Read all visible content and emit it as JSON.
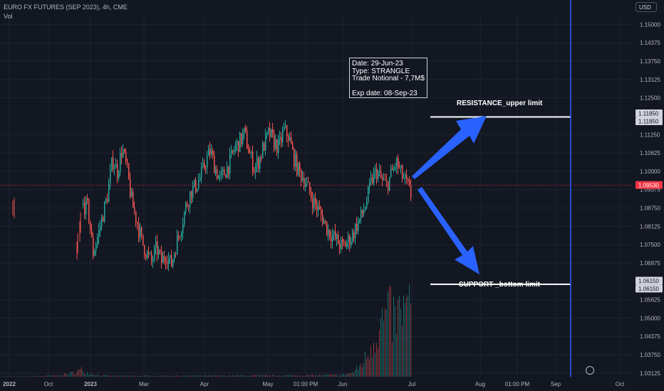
{
  "header": {
    "symbol_title": "EURO FX FUTURES (SEP 2023), 4h, CME",
    "volume_label": "Vol",
    "currency": "USD"
  },
  "annotation": {
    "lines": [
      "Date: 29-Jun-23",
      "Type: STRANGLE",
      "Trade Notional - 7,7M$",
      "",
      "Exp date: 08-Sep-23"
    ]
  },
  "levels": {
    "resistance_label": "RESISTANCE_upper limit",
    "support_label": "SUPPORT _bottom limit"
  },
  "colors": {
    "background": "#131722",
    "up_candle": "#26a69a",
    "down_candle": "#ef5350",
    "arrow": "#2962ff",
    "last_price": "#f23645",
    "expiry_line": "#2962ff",
    "grid": "#1f2330"
  },
  "chart_data": {
    "type": "candlestick",
    "title": "EURO FX FUTURES (SEP 2023), 4h, CME",
    "ylim": [
      1.03,
      1.153
    ],
    "y_ticks": [
      "1.15000",
      "1.14375",
      "1.13750",
      "1.13125",
      "1.12500",
      "1.11250",
      "1.10625",
      "1.10000",
      "1.09375",
      "1.08750",
      "1.08125",
      "1.07500",
      "1.06875",
      "1.05625",
      "1.05000",
      "1.04375",
      "1.03750",
      "1.03125"
    ],
    "x_ticks": [
      "2022",
      "Oct",
      "2023",
      "Mar",
      "Apr",
      "May",
      "01:00 PM",
      "Jun",
      "Jul",
      "Aug",
      "01:00 PM",
      "Sep",
      "Oct"
    ],
    "last_price": 1.0953,
    "resistance": 1.1185,
    "support": 1.0615,
    "price_labels": [
      "1.11850",
      "1.11850",
      "1.09530",
      "1.06150",
      "1.06150"
    ],
    "path": [
      [
        0,
        1.0885
      ],
      [
        1,
        1.0875
      ],
      [
        2,
        1.072
      ],
      [
        3,
        1.078
      ],
      [
        4,
        1.085
      ],
      [
        5,
        1.092
      ],
      [
        6,
        1.104
      ],
      [
        7,
        1.1
      ],
      [
        8,
        1.108
      ],
      [
        9,
        1.1
      ],
      [
        10,
        1.089
      ],
      [
        11,
        1.083
      ],
      [
        12,
        1.076
      ],
      [
        13,
        1.072
      ],
      [
        14,
        1.069
      ],
      [
        15,
        1.074
      ],
      [
        16,
        1.069
      ],
      [
        17,
        1.072
      ],
      [
        18,
        1.068
      ],
      [
        19,
        1.075
      ],
      [
        20,
        1.081
      ],
      [
        21,
        1.088
      ],
      [
        22,
        1.093
      ],
      [
        23,
        1.095
      ],
      [
        24,
        1.098
      ],
      [
        25,
        1.103
      ],
      [
        26,
        1.107
      ],
      [
        27,
        1.101
      ],
      [
        28,
        1.097
      ],
      [
        29,
        1.1
      ],
      [
        30,
        1.103
      ],
      [
        31,
        1.108
      ],
      [
        32,
        1.11
      ],
      [
        33,
        1.113
      ],
      [
        34,
        1.106
      ],
      [
        35,
        1.101
      ],
      [
        36,
        1.104
      ],
      [
        37,
        1.109
      ],
      [
        38,
        1.113
      ],
      [
        39,
        1.11
      ],
      [
        40,
        1.108
      ],
      [
        41,
        1.114
      ],
      [
        42,
        1.112
      ],
      [
        43,
        1.105
      ],
      [
        44,
        1.1
      ],
      [
        45,
        1.098
      ],
      [
        46,
        1.094
      ],
      [
        47,
        1.09
      ],
      [
        48,
        1.087
      ],
      [
        49,
        1.084
      ],
      [
        50,
        1.08
      ],
      [
        51,
        1.078
      ],
      [
        52,
        1.076
      ],
      [
        53,
        1.074
      ],
      [
        54,
        1.076
      ],
      [
        55,
        1.078
      ],
      [
        56,
        1.082
      ],
      [
        57,
        1.085
      ],
      [
        58,
        1.09
      ],
      [
        59,
        1.097
      ],
      [
        60,
        1.1
      ],
      [
        61,
        1.097
      ],
      [
        62,
        1.095
      ],
      [
        63,
        1.099
      ],
      [
        64,
        1.103
      ],
      [
        65,
        1.099
      ],
      [
        66,
        1.096
      ],
      [
        67,
        1.092
      ]
    ],
    "volume_profile": [
      [
        0,
        0.01
      ],
      [
        20,
        0.005
      ],
      [
        40,
        0.006
      ],
      [
        60,
        0.012
      ],
      [
        80,
        0.018
      ],
      [
        100,
        0.05
      ],
      [
        115,
        0.1
      ],
      [
        120,
        0.06
      ],
      [
        140,
        0.02
      ],
      [
        160,
        0.015
      ],
      [
        180,
        0.012
      ],
      [
        200,
        0.014
      ],
      [
        240,
        0.015
      ],
      [
        280,
        0.015
      ],
      [
        320,
        0.016
      ],
      [
        360,
        0.018
      ],
      [
        400,
        0.02
      ],
      [
        440,
        0.022
      ],
      [
        480,
        0.03
      ],
      [
        495,
        0.06
      ],
      [
        505,
        0.15
      ],
      [
        515,
        0.3
      ],
      [
        525,
        0.55
      ],
      [
        535,
        0.75
      ],
      [
        545,
        0.85
      ],
      [
        555,
        0.8
      ],
      [
        565,
        0.9
      ],
      [
        575,
        0.95
      ]
    ]
  }
}
